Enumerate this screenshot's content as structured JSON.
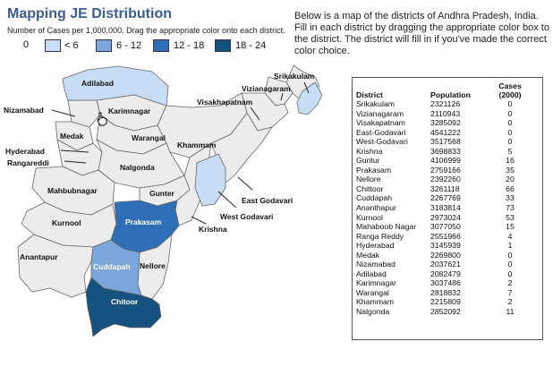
{
  "title": "Mapping JE Distribution",
  "subtitle": "Number of Cases per 1,000,000.  Drag the appropriate color onto each district.",
  "instructions": "Below is a map of the districts of Andhra Pradesh, India.  Fill in each district by dragging the appropriate color box to the district.  The district will fill in if you've made the correct color choice.",
  "legend": [
    {
      "label": "0",
      "color": "#ffffff",
      "has_swatch": false
    },
    {
      "label": "< 6",
      "color": "#c9dcf5"
    },
    {
      "label": "6 - 12",
      "color": "#7aa6dc"
    },
    {
      "label": "12 - 18",
      "color": "#2f6fb8"
    },
    {
      "label": "18 - 24",
      "color": "#15527f"
    }
  ],
  "colors": {
    "unfilled": "#ececec",
    "border": "#666666",
    "title": "#3a5c92"
  },
  "map": {
    "labels": {
      "srikakulam": "Srikakulam",
      "vizianagaram": "Vizianagaram",
      "visakhapatnam": "Visakhapatnam",
      "adilabad": "Adilabad",
      "nizamabad": "Nizamabad",
      "karimnagar": "Karimnagar",
      "medak": "Medak",
      "warangal": "Warangal",
      "khammam": "Khammam",
      "hyderabad": "Hyderabad",
      "rangareddi": "Rangareddi",
      "nalgonda": "Nalgonda",
      "mahbubnagar": "Mahbubnagar",
      "gunter": "Gunter",
      "east_godavari": "East Godavari",
      "west_godavari": "West Godavari",
      "krishna": "Krishna",
      "kurnool": "Kurnool",
      "prakasam": "Prakasam",
      "anantapur": "Anantapur",
      "cuddapah": "Cuddapah",
      "nellore": "Nellore",
      "chitoor": "Chitoor"
    }
  },
  "table": {
    "headers": {
      "district": "District",
      "population": "Population",
      "cases": "Cases",
      "cases_year": "(2000)"
    },
    "rows": [
      {
        "district": "Srikakulam",
        "population": "2321126",
        "cases": "0"
      },
      {
        "district": "Vizianagaram",
        "population": "2110943",
        "cases": "0"
      },
      {
        "district": "Visakapatnam",
        "population": "3285092",
        "cases": "0"
      },
      {
        "district": "East-Godavari",
        "population": "4541222",
        "cases": "0"
      },
      {
        "district": "West-Godavari",
        "population": "3517568",
        "cases": "0"
      },
      {
        "district": "Krishna",
        "population": "3698833",
        "cases": "5"
      },
      {
        "district": "Guntur",
        "population": "4106999",
        "cases": "16"
      },
      {
        "district": "Prakasam",
        "population": "2759166",
        "cases": "35"
      },
      {
        "district": "Nellore",
        "population": "2392260",
        "cases": "20"
      },
      {
        "district": "Chittoor",
        "population": "3261118",
        "cases": "66"
      },
      {
        "district": "Cuddapah",
        "population": "2267769",
        "cases": "33"
      },
      {
        "district": "Ananthapur",
        "population": "3183814",
        "cases": "73"
      },
      {
        "district": "Kurnool",
        "population": "2973024",
        "cases": "53"
      },
      {
        "district": "Mahaboob Nagar",
        "population": "3077050",
        "cases": "15"
      },
      {
        "district": "Ranga Reddy",
        "population": "2551966",
        "cases": "4"
      },
      {
        "district": "Hyderabad",
        "population": "3145939",
        "cases": "1"
      },
      {
        "district": "Medak",
        "population": "2269800",
        "cases": "0"
      },
      {
        "district": "Nizamabad",
        "population": "2037621",
        "cases": "0"
      },
      {
        "district": "Adilabad",
        "population": "2082479",
        "cases": "0"
      },
      {
        "district": "Karimnagar",
        "population": "3037486",
        "cases": "2"
      },
      {
        "district": "Warangal",
        "population": "2818832",
        "cases": "7"
      },
      {
        "district": "Khammam",
        "population": "2215809",
        "cases": "2"
      },
      {
        "district": "Nalgonda",
        "population": "2852092",
        "cases": "11"
      }
    ]
  }
}
